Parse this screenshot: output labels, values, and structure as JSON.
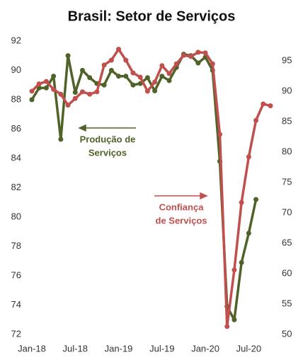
{
  "chart_data": {
    "type": "line",
    "title": "Brasil: Setor de Serviços",
    "categories": [
      "Jan-18",
      null,
      null,
      null,
      null,
      null,
      "Jul-18",
      null,
      null,
      null,
      null,
      null,
      "Jan-19",
      null,
      null,
      null,
      null,
      null,
      "Jul-19",
      null,
      null,
      null,
      null,
      null,
      "Jan-20",
      null,
      null,
      null,
      null,
      null,
      "Jul-20",
      null,
      null,
      null
    ],
    "series": [
      {
        "name": "Produção de Serviços",
        "color": "#4f6228",
        "axis": "y",
        "values": [
          88.0,
          88.8,
          88.8,
          89.6,
          85.3,
          91.0,
          88.5,
          90.0,
          89.5,
          89.1,
          89.0,
          90.0,
          89.6,
          89.6,
          89.0,
          89.1,
          89.5,
          88.6,
          89.6,
          89.3,
          90.2,
          91.1,
          91.0,
          90.5,
          90.9,
          90.0,
          83.8,
          73.9,
          73.0,
          76.9,
          78.9,
          81.2,
          null,
          null
        ]
      },
      {
        "name": "Confiança de Serviços",
        "color": "#c0504d",
        "axis": "y2",
        "values": [
          90.0,
          91.2,
          91.6,
          90.3,
          89.5,
          87.7,
          88.8,
          89.9,
          89.5,
          89.9,
          94.3,
          95.1,
          96.9,
          95.1,
          93.0,
          92.3,
          90.0,
          91.5,
          94.2,
          92.9,
          94.5,
          95.9,
          95.7,
          96.4,
          96.3,
          94.5,
          82.9,
          51.3,
          60.6,
          71.7,
          79.2,
          85.2,
          87.9,
          87.6
        ]
      }
    ],
    "annotations": [
      {
        "lines": [
          "Produção de",
          "Serviços"
        ],
        "color": "#4f6228"
      },
      {
        "lines": [
          "Confiança",
          "de Serviços"
        ],
        "color": "#c0504d"
      }
    ],
    "ylim": [
      72,
      92
    ],
    "yticks": [
      72,
      74,
      76,
      78,
      80,
      82,
      84,
      86,
      88,
      90,
      92
    ],
    "y2lim": [
      50,
      98.25
    ],
    "y2ticks": [
      50,
      55,
      60,
      65,
      70,
      75,
      80,
      85,
      90,
      95
    ],
    "grid": false
  }
}
